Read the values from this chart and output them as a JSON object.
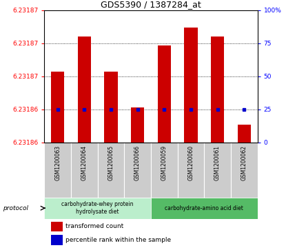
{
  "title": "GDS5390 / 1387284_at",
  "samples": [
    "GSM1200063",
    "GSM1200064",
    "GSM1200065",
    "GSM1200066",
    "GSM1200059",
    "GSM1200060",
    "GSM1200061",
    "GSM1200062"
  ],
  "transformed_counts": [
    6.231868,
    6.231872,
    6.231868,
    6.231864,
    6.231871,
    6.231873,
    6.231872,
    6.231862
  ],
  "percentile_ranks": [
    25,
    25,
    25,
    25,
    25,
    25,
    25,
    25
  ],
  "ylim_left": [
    6.23186,
    6.231875
  ],
  "bar_color": "#cc0000",
  "dot_color": "#0000cc",
  "background_color": "#ffffff",
  "group1_label": "carbohydrate-whey protein\nhydrolysate diet",
  "group2_label": "carbohydrate-amino acid diet",
  "group1_color": "#bbeecc",
  "group2_color": "#55bb66",
  "group1_indices": [
    0,
    1,
    2,
    3
  ],
  "group2_indices": [
    4,
    5,
    6,
    7
  ],
  "legend_bar_label": "transformed count",
  "legend_dot_label": "percentile rank within the sample",
  "protocol_label": "protocol",
  "right_yticks": [
    0,
    25,
    50,
    75,
    100
  ],
  "right_yticklabels": [
    "0",
    "25",
    "50",
    "75",
    "100%"
  ],
  "left_ytick_count": 5,
  "plot_box_color": "#dddddd",
  "sample_box_color": "#cccccc"
}
